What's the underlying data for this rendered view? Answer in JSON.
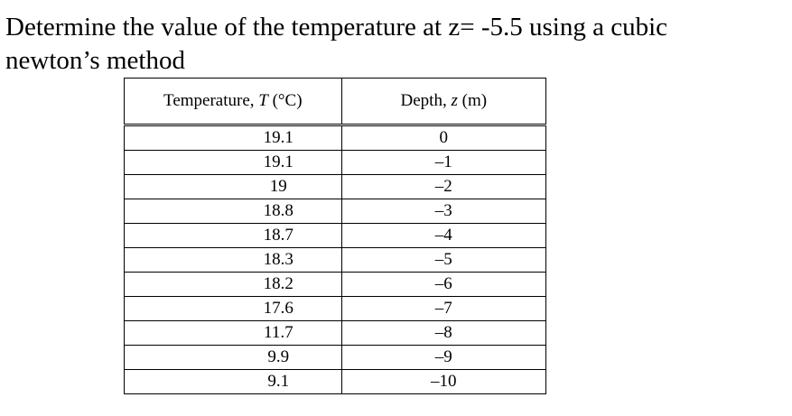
{
  "question": {
    "line1": "Determine the value of the temperature at  z= -5.5 using a cubic",
    "line2": "newton’s method"
  },
  "table": {
    "headers": {
      "temperature_prefix": "Temperature, ",
      "temperature_var": "T",
      "temperature_unit": " (°C)",
      "depth_prefix": "Depth, ",
      "depth_var": "z",
      "depth_unit": " (m)"
    },
    "rows": [
      {
        "temperature": "19.1",
        "depth": "0"
      },
      {
        "temperature": "19.1",
        "depth": "–1"
      },
      {
        "temperature": "19",
        "depth": "–2"
      },
      {
        "temperature": "18.8",
        "depth": "–3"
      },
      {
        "temperature": "18.7",
        "depth": "–4"
      },
      {
        "temperature": "18.3",
        "depth": "–5"
      },
      {
        "temperature": "18.2",
        "depth": "–6"
      },
      {
        "temperature": "17.6",
        "depth": "–7"
      },
      {
        "temperature": "11.7",
        "depth": "–8"
      },
      {
        "temperature": "9.9",
        "depth": "–9"
      },
      {
        "temperature": "9.1",
        "depth": "–10"
      }
    ]
  }
}
